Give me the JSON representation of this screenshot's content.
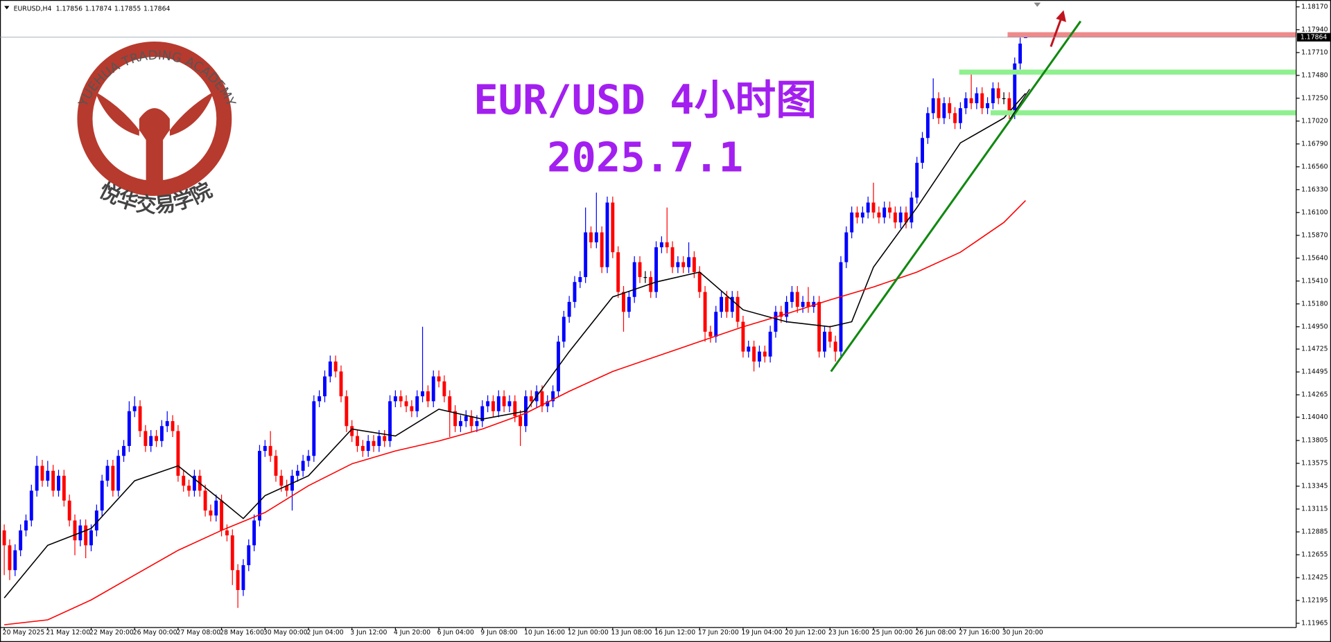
{
  "chart_data": {
    "type": "candlestick",
    "symbol": "EURUSD,H4",
    "title": "EUR/USD 4小时图",
    "subtitle": "2025.7.1",
    "watermark": {
      "text": "YUEHUA TRADING ACADEMY",
      "chinese": "悦华交易学院"
    },
    "up_color": "#0000ff",
    "down_color": "#ff0000",
    "ylim": [
      1.11922,
      1.18213
    ],
    "yticks": [
      {
        "value": 1.1817,
        "label": "1.18170"
      },
      {
        "value": 1.1794,
        "label": "1.17940"
      },
      {
        "value": 1.1771,
        "label": "1.17710"
      },
      {
        "value": 1.1748,
        "label": "1.17480"
      },
      {
        "value": 1.1725,
        "label": "1.17250"
      },
      {
        "value": 1.1702,
        "label": "1.17020"
      },
      {
        "value": 1.1679,
        "label": "1.16790"
      },
      {
        "value": 1.1656,
        "label": "1.16560"
      },
      {
        "value": 1.1633,
        "label": "1.16330"
      },
      {
        "value": 1.161,
        "label": "1.16100"
      },
      {
        "value": 1.1587,
        "label": "1.15870"
      },
      {
        "value": 1.1564,
        "label": "1.15640"
      },
      {
        "value": 1.1541,
        "label": "1.15410"
      },
      {
        "value": 1.1518,
        "label": "1.15180"
      },
      {
        "value": 1.1495,
        "label": "1.14950"
      },
      1.14725,
      1.14495,
      1.14265,
      {
        "value": 1.1404,
        "label": "1.14040"
      },
      1.13805,
      1.13575,
      1.13345,
      1.13115,
      1.12885,
      1.12655,
      1.12425,
      1.12195,
      1.11965
    ],
    "categories": [
      "20 May 2025",
      null,
      null,
      null,
      null,
      null,
      null,
      null,
      "21 May 12:00",
      null,
      null,
      null,
      null,
      null,
      null,
      null,
      "22 May 20:00",
      null,
      null,
      null,
      null,
      null,
      null,
      null,
      "26 May 00:00",
      null,
      null,
      null,
      null,
      null,
      null,
      null,
      "27 May 08:00",
      null,
      null,
      null,
      null,
      null,
      null,
      null,
      "28 May 16:00",
      null,
      null,
      null,
      null,
      null,
      null,
      null,
      "30 May 00:00",
      null,
      null,
      null,
      null,
      null,
      null,
      null,
      "2 Jun 04:00",
      null,
      null,
      null,
      null,
      null,
      null,
      null,
      "3 Jun 12:00",
      null,
      null,
      null,
      null,
      null,
      null,
      null,
      "4 Jun 20:00",
      null,
      null,
      null,
      null,
      null,
      null,
      null,
      "6 Jun 04:00",
      null,
      null,
      null,
      null,
      null,
      null,
      null,
      "9 Jun 08:00",
      null,
      null,
      null,
      null,
      null,
      null,
      null,
      "10 Jun 16:00",
      null,
      null,
      null,
      null,
      null,
      null,
      null,
      "12 Jun 00:00",
      null,
      null,
      null,
      null,
      null,
      null,
      null,
      "13 Jun 08:00",
      null,
      null,
      null,
      null,
      null,
      null,
      null,
      "16 Jun 12:00",
      null,
      null,
      null,
      null,
      null,
      null,
      null,
      "17 Jun 20:00",
      null,
      null,
      null,
      null,
      null,
      null,
      null,
      "19 Jun 04:00",
      null,
      null,
      null,
      null,
      null,
      null,
      null,
      "20 Jun 12:00",
      null,
      null,
      null,
      null,
      null,
      null,
      null,
      "23 Jun 16:00",
      null,
      null,
      null,
      null,
      null,
      null,
      null,
      "25 Jun 00:00",
      null,
      null,
      null,
      null,
      null,
      null,
      null,
      "26 Jun 08:00",
      null,
      null,
      null,
      null,
      null,
      null,
      null,
      "27 Jun 16:00",
      null,
      null,
      null,
      null,
      null,
      null,
      null,
      "30 Jun 20:00",
      null,
      null,
      null,
      null
    ],
    "open": [
      1.129,
      1.1275,
      1.125,
      1.127,
      1.129,
      1.13,
      1.133,
      1.1355,
      1.134,
      1.135,
      1.133,
      1.1345,
      1.132,
      1.13,
      1.128,
      1.1295,
      1.1275,
      1.129,
      1.131,
      1.134,
      1.1355,
      1.133,
      1.1365,
      1.1375,
      1.141,
      1.1415,
      1.139,
      1.1375,
      1.1385,
      1.138,
      1.1395,
      1.14,
      1.139,
      1.1345,
      1.1335,
      1.133,
      1.1345,
      1.133,
      1.131,
      1.1305,
      1.132,
      1.129,
      1.1285,
      1.125,
      1.123,
      1.1255,
      1.1275,
      1.13,
      1.137,
      1.1375,
      1.1365,
      1.1345,
      1.1335,
      1.133,
      1.1345,
      1.135,
      1.136,
      1.1365,
      1.142,
      1.1425,
      1.1445,
      1.146,
      1.145,
      1.1425,
      1.1395,
      1.1385,
      1.1375,
      1.137,
      1.138,
      1.1375,
      1.1385,
      1.138,
      1.142,
      1.1425,
      1.142,
      1.1415,
      1.141,
      1.1425,
      1.143,
      1.142,
      1.1445,
      1.144,
      1.1425,
      1.141,
      1.1395,
      1.14,
      1.1405,
      1.1395,
      1.14,
      1.1415,
      1.142,
      1.141,
      1.1425,
      1.1415,
      1.142,
      1.1405,
      1.1395,
      1.1425,
      1.142,
      1.143,
      1.1415,
      1.142,
      1.143,
      1.148,
      1.1505,
      1.152,
      1.154,
      1.1545,
      1.159,
      1.158,
      1.159,
      1.1555,
      1.162,
      1.157,
      1.153,
      1.151,
      1.1525,
      1.156,
      1.1545,
      1.1545,
      1.153,
      1.1575,
      1.158,
      1.1575,
      1.1555,
      1.156,
      1.1555,
      1.1565,
      1.155,
      1.153,
      1.149,
      1.1485,
      1.151,
      1.1525,
      1.151,
      1.1525,
      1.15,
      1.147,
      1.1475,
      1.146,
      1.147,
      1.1465,
      1.149,
      1.151,
      1.1505,
      1.152,
      1.153,
      1.1515,
      1.152,
      1.1515,
      1.152,
      1.147,
      1.149,
      1.148,
      1.147,
      1.156,
      1.159,
      1.161,
      1.1605,
      1.161,
      1.162,
      1.161,
      1.1605,
      1.1615,
      1.161,
      1.16,
      1.161,
      1.16,
      1.1625,
      1.166,
      1.1685,
      1.171,
      1.1725,
      1.1705,
      1.172,
      1.171,
      1.17,
      1.1715,
      1.1725,
      1.172,
      1.173,
      1.1715,
      1.172,
      1.1735,
      1.1725,
      1.1725,
      1.171,
      1.176,
      1.17856
    ],
    "high": [
      1.1296,
      1.1281,
      1.1276,
      1.1296,
      1.1306,
      1.1336,
      1.1365,
      1.1361,
      1.136,
      1.1356,
      1.1351,
      1.1351,
      1.1326,
      1.1306,
      1.1301,
      1.1301,
      1.1296,
      1.1316,
      1.1346,
      1.1361,
      1.1361,
      1.1371,
      1.1381,
      1.142,
      1.1425,
      1.1421,
      1.1396,
      1.1391,
      1.1391,
      1.1401,
      1.141,
      1.1406,
      1.1396,
      1.1351,
      1.1341,
      1.1351,
      1.1351,
      1.1336,
      1.1316,
      1.1326,
      1.1326,
      1.1296,
      1.1291,
      1.1256,
      1.1261,
      1.1281,
      1.1306,
      1.1376,
      1.1381,
      1.139,
      1.1371,
      1.1351,
      1.1341,
      1.1351,
      1.1356,
      1.1366,
      1.1371,
      1.1426,
      1.1431,
      1.1451,
      1.1466,
      1.1466,
      1.1456,
      1.1431,
      1.1401,
      1.1391,
      1.1381,
      1.1386,
      1.1386,
      1.1391,
      1.1391,
      1.1426,
      1.1431,
      1.1431,
      1.1426,
      1.1421,
      1.1431,
      1.1495,
      1.1436,
      1.1451,
      1.1451,
      1.1446,
      1.1431,
      1.1416,
      1.1406,
      1.1411,
      1.1411,
      1.1406,
      1.1421,
      1.1426,
      1.1426,
      1.1431,
      1.1431,
      1.1426,
      1.1426,
      1.1411,
      1.1431,
      1.1431,
      1.1436,
      1.1436,
      1.1426,
      1.1436,
      1.1486,
      1.1511,
      1.1526,
      1.1546,
      1.1551,
      1.1615,
      1.1596,
      1.163,
      1.1596,
      1.1626,
      1.1626,
      1.1576,
      1.1536,
      1.1531,
      1.1566,
      1.1566,
      1.1551,
      1.1551,
      1.1581,
      1.1586,
      1.1615,
      1.1581,
      1.1566,
      1.1566,
      1.158,
      1.1571,
      1.1556,
      1.1536,
      1.1496,
      1.1516,
      1.1531,
      1.1531,
      1.1531,
      1.1531,
      1.1506,
      1.1481,
      1.1481,
      1.1476,
      1.1476,
      1.1496,
      1.1516,
      1.1516,
      1.1526,
      1.1536,
      1.1536,
      1.1526,
      1.1535,
      1.1526,
      1.1526,
      1.1496,
      1.1496,
      1.1486,
      1.1566,
      1.1596,
      1.1616,
      1.1616,
      1.1616,
      1.1626,
      1.164,
      1.1616,
      1.1621,
      1.1621,
      1.1616,
      1.1616,
      1.1616,
      1.1631,
      1.1666,
      1.1691,
      1.1716,
      1.1745,
      1.1731,
      1.1726,
      1.1726,
      1.1716,
      1.1721,
      1.1731,
      1.175,
      1.1736,
      1.1736,
      1.1726,
      1.1741,
      1.1741,
      1.1731,
      1.1731,
      1.1766,
      1.1786,
      1.17874
    ],
    "low": [
      1.1245,
      1.124,
      1.1244,
      1.1264,
      1.1284,
      1.1294,
      1.1324,
      1.1334,
      1.1334,
      1.1324,
      1.1324,
      1.1314,
      1.1294,
      1.1265,
      1.1274,
      1.1262,
      1.1269,
      1.1284,
      1.1304,
      1.1334,
      1.1324,
      1.1324,
      1.1359,
      1.1369,
      1.1404,
      1.1384,
      1.1369,
      1.1369,
      1.1374,
      1.1374,
      1.1389,
      1.1384,
      1.1339,
      1.1329,
      1.1324,
      1.1324,
      1.1324,
      1.1304,
      1.1299,
      1.1299,
      1.1284,
      1.1279,
      1.1235,
      1.1212,
      1.1224,
      1.1249,
      1.1269,
      1.1294,
      1.1364,
      1.1359,
      1.1339,
      1.1329,
      1.1324,
      1.131,
      1.1339,
      1.1344,
      1.1354,
      1.1359,
      1.1414,
      1.1419,
      1.1439,
      1.1444,
      1.1419,
      1.1389,
      1.1379,
      1.1369,
      1.1364,
      1.1364,
      1.1369,
      1.1369,
      1.1374,
      1.1374,
      1.1414,
      1.1414,
      1.1409,
      1.1404,
      1.1404,
      1.1419,
      1.1414,
      1.1414,
      1.1434,
      1.1419,
      1.1384,
      1.1389,
      1.1389,
      1.1394,
      1.1389,
      1.1389,
      1.1394,
      1.1409,
      1.1404,
      1.1404,
      1.1409,
      1.1409,
      1.1399,
      1.1375,
      1.1389,
      1.1414,
      1.1414,
      1.1409,
      1.1409,
      1.1414,
      1.1424,
      1.1474,
      1.1499,
      1.1514,
      1.1534,
      1.1539,
      1.1574,
      1.1574,
      1.1549,
      1.1549,
      1.1564,
      1.1524,
      1.149,
      1.1504,
      1.1519,
      1.1539,
      1.1539,
      1.1524,
      1.1524,
      1.1569,
      1.1569,
      1.1549,
      1.1549,
      1.1549,
      1.1549,
      1.1544,
      1.1524,
      1.148,
      1.1479,
      1.1479,
      1.1504,
      1.1504,
      1.1504,
      1.1494,
      1.1464,
      1.1464,
      1.145,
      1.1454,
      1.1459,
      1.1459,
      1.1484,
      1.1499,
      1.1499,
      1.1514,
      1.1509,
      1.1509,
      1.1509,
      1.1509,
      1.1464,
      1.1464,
      1.1474,
      1.146,
      1.1464,
      1.1554,
      1.1584,
      1.1599,
      1.1599,
      1.1604,
      1.1604,
      1.1599,
      1.1599,
      1.1604,
      1.1594,
      1.1594,
      1.1594,
      1.1594,
      1.1619,
      1.1654,
      1.1679,
      1.1704,
      1.1699,
      1.1699,
      1.1704,
      1.1694,
      1.1694,
      1.1709,
      1.1714,
      1.1714,
      1.1709,
      1.1709,
      1.1714,
      1.1719,
      1.1719,
      1.1704,
      1.1704,
      1.1754,
      1.17855
    ],
    "close": [
      1.1275,
      1.125,
      1.127,
      1.129,
      1.13,
      1.133,
      1.1355,
      1.134,
      1.135,
      1.133,
      1.1345,
      1.132,
      1.13,
      1.128,
      1.1295,
      1.1275,
      1.129,
      1.131,
      1.134,
      1.1355,
      1.133,
      1.1365,
      1.1375,
      1.141,
      1.1415,
      1.139,
      1.1375,
      1.1385,
      1.138,
      1.1395,
      1.14,
      1.139,
      1.1345,
      1.1335,
      1.133,
      1.1345,
      1.133,
      1.131,
      1.1305,
      1.132,
      1.129,
      1.1285,
      1.125,
      1.123,
      1.1255,
      1.1275,
      1.13,
      1.137,
      1.1375,
      1.1365,
      1.1345,
      1.1335,
      1.133,
      1.1345,
      1.135,
      1.136,
      1.1365,
      1.142,
      1.1425,
      1.1445,
      1.146,
      1.145,
      1.1425,
      1.1395,
      1.1385,
      1.1375,
      1.137,
      1.138,
      1.1375,
      1.1385,
      1.138,
      1.142,
      1.1425,
      1.142,
      1.1415,
      1.141,
      1.1425,
      1.143,
      1.142,
      1.1445,
      1.144,
      1.1425,
      1.141,
      1.1395,
      1.14,
      1.1405,
      1.1395,
      1.14,
      1.1415,
      1.142,
      1.141,
      1.1425,
      1.1415,
      1.142,
      1.1405,
      1.1395,
      1.1425,
      1.142,
      1.143,
      1.1415,
      1.142,
      1.143,
      1.148,
      1.1505,
      1.152,
      1.154,
      1.1545,
      1.159,
      1.158,
      1.159,
      1.1555,
      1.162,
      1.157,
      1.153,
      1.151,
      1.1525,
      1.156,
      1.1545,
      1.1545,
      1.153,
      1.1575,
      1.158,
      1.1575,
      1.1555,
      1.156,
      1.1555,
      1.1565,
      1.155,
      1.153,
      1.149,
      1.1485,
      1.151,
      1.1525,
      1.151,
      1.1525,
      1.15,
      1.147,
      1.1475,
      1.146,
      1.147,
      1.1465,
      1.149,
      1.151,
      1.1505,
      1.152,
      1.153,
      1.1515,
      1.152,
      1.1515,
      1.152,
      1.147,
      1.149,
      1.148,
      1.147,
      1.156,
      1.159,
      1.161,
      1.1605,
      1.161,
      1.162,
      1.161,
      1.1605,
      1.1615,
      1.161,
      1.16,
      1.161,
      1.16,
      1.1625,
      1.166,
      1.1685,
      1.171,
      1.1725,
      1.1705,
      1.172,
      1.171,
      1.17,
      1.1715,
      1.1725,
      1.172,
      1.173,
      1.1715,
      1.172,
      1.1735,
      1.1725,
      1.1725,
      1.171,
      1.176,
      1.178,
      1.17864
    ],
    "lines": [
      {
        "color": "#000000",
        "x": [
          0,
          8,
          16,
          24,
          32,
          40,
          44,
          48,
          56,
          64,
          72,
          80,
          88,
          96,
          104,
          112,
          120,
          128,
          136,
          144,
          152,
          156,
          160,
          168,
          176,
          184,
          188
        ],
        "values": [
          1.1222,
          1.1275,
          1.1292,
          1.134,
          1.1355,
          1.132,
          1.1302,
          1.1325,
          1.1345,
          1.1392,
          1.1385,
          1.1412,
          1.1402,
          1.141,
          1.147,
          1.1525,
          1.154,
          1.155,
          1.1512,
          1.15,
          1.1495,
          1.15,
          1.1555,
          1.1615,
          1.168,
          1.1705,
          1.173
        ]
      },
      {
        "color": "#ff0000",
        "x": [
          0,
          8,
          16,
          24,
          32,
          40,
          48,
          56,
          64,
          72,
          80,
          88,
          96,
          104,
          112,
          120,
          128,
          136,
          144,
          152,
          160,
          168,
          176,
          184,
          188
        ],
        "values": [
          1.1195,
          1.12,
          1.122,
          1.1245,
          1.127,
          1.129,
          1.1308,
          1.1335,
          1.1357,
          1.137,
          1.138,
          1.1392,
          1.1408,
          1.143,
          1.145,
          1.1465,
          1.148,
          1.1495,
          1.1508,
          1.1522,
          1.1535,
          1.155,
          1.157,
          1.16,
          1.1622
        ]
      }
    ]
  }
}
